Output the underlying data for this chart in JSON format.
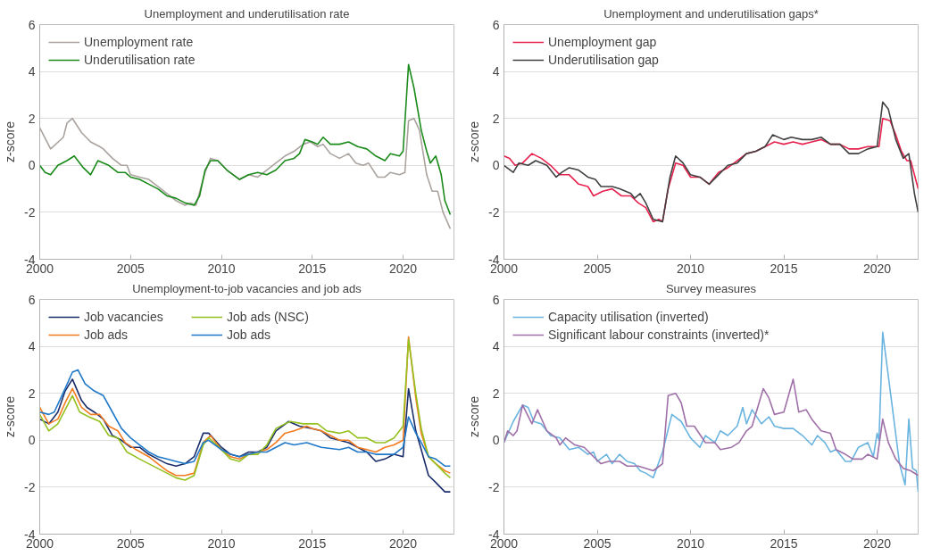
{
  "chart_data": [
    {
      "type": "line",
      "title": "Unemployment and underutilisation rate",
      "ylabel": "z-score",
      "xlim": [
        2000,
        2022.8
      ],
      "xticks": [
        2000,
        2005,
        2010,
        2015,
        2020
      ],
      "ylim": [
        -4,
        6
      ],
      "yticks": [
        -4,
        -2,
        0,
        2,
        4,
        6
      ],
      "grid": "y",
      "legend": "top left",
      "series": [
        {
          "name": "Unemployment rate",
          "color": "#aaa39f",
          "x": [
            2000,
            2000.6,
            2001.3,
            2001.5,
            2001.8,
            2002.3,
            2002.8,
            2003.3,
            2003.5,
            2004,
            2004.5,
            2004.8,
            2005,
            2005.5,
            2006,
            2006.5,
            2007,
            2007.5,
            2008,
            2008.3,
            2008.6,
            2009.1,
            2009.4,
            2009.8,
            2010.3,
            2011,
            2011.5,
            2012,
            2012.5,
            2013,
            2013.5,
            2014,
            2014.5,
            2014.9,
            2015.3,
            2015.6,
            2016,
            2016.5,
            2017,
            2017.4,
            2017.8,
            2018.1,
            2018.6,
            2019,
            2019.3,
            2019.8,
            2020.1,
            2020.3,
            2020.6,
            2020.9,
            2021.3,
            2021.6,
            2021.9,
            2022.2,
            2022.6
          ],
          "values": [
            1.6,
            0.7,
            1.2,
            1.8,
            2.0,
            1.4,
            1.0,
            0.8,
            0.7,
            0.3,
            0.0,
            0.0,
            -0.4,
            -0.5,
            -0.6,
            -0.9,
            -1.2,
            -1.5,
            -1.7,
            -1.6,
            -1.7,
            -0.3,
            0.3,
            0.2,
            -0.2,
            -0.6,
            -0.4,
            -0.5,
            -0.2,
            0.1,
            0.4,
            0.6,
            0.9,
            1.0,
            0.8,
            0.9,
            0.5,
            0.3,
            0.5,
            0.1,
            0.0,
            0.1,
            -0.5,
            -0.5,
            -0.3,
            -0.4,
            -0.3,
            1.9,
            2.0,
            1.5,
            -0.4,
            -1.1,
            -1.1,
            -2.0,
            -2.7
          ]
        },
        {
          "name": "Underutilisation rate",
          "color": "#1a8a1a",
          "x": [
            2000,
            2000.3,
            2000.6,
            2001,
            2001.5,
            2001.9,
            2002.4,
            2002.8,
            2003.2,
            2003.8,
            2004.3,
            2004.7,
            2005,
            2005.5,
            2006,
            2006.5,
            2007,
            2007.5,
            2008,
            2008.5,
            2008.8,
            2009.1,
            2009.4,
            2009.8,
            2010.3,
            2011,
            2011.5,
            2012,
            2012.5,
            2013,
            2013.5,
            2014,
            2014.3,
            2014.6,
            2015,
            2015.3,
            2015.6,
            2016,
            2016.5,
            2017,
            2017.5,
            2018,
            2018.5,
            2019,
            2019.3,
            2019.8,
            2020,
            2020.3,
            2020.6,
            2021,
            2021.3,
            2021.5,
            2021.8,
            2022.1,
            2022.3,
            2022.6
          ],
          "values": [
            0,
            -0.3,
            -0.4,
            0,
            0.2,
            0.4,
            -0.1,
            -0.4,
            0.2,
            0,
            -0.3,
            -0.3,
            -0.5,
            -0.6,
            -0.8,
            -1.0,
            -1.3,
            -1.4,
            -1.6,
            -1.7,
            -1.3,
            -0.2,
            0.2,
            0.2,
            -0.2,
            -0.6,
            -0.4,
            -0.3,
            -0.4,
            -0.2,
            0.2,
            0.3,
            0.5,
            1.1,
            1.0,
            0.9,
            1.2,
            0.9,
            0.9,
            1.0,
            0.8,
            0.7,
            0.4,
            0.2,
            0.5,
            0.4,
            0.6,
            4.3,
            3.3,
            1.5,
            0.6,
            0.1,
            0.4,
            -0.4,
            -1.5,
            -2.1
          ]
        }
      ]
    },
    {
      "type": "line",
      "title": "Unemployment and underutilisation gaps*",
      "ylabel": "z-score",
      "xlim": [
        2000,
        2022.2
      ],
      "xticks": [
        2000,
        2005,
        2010,
        2015,
        2020
      ],
      "ylim": [
        -4,
        6
      ],
      "yticks": [
        -4,
        -2,
        0,
        2,
        4,
        6
      ],
      "grid": "y",
      "legend": "top left",
      "series": [
        {
          "name": "Unemployment gap",
          "color": "#e8224e",
          "x": [
            2000,
            2000.3,
            2000.6,
            2001,
            2001.5,
            2002,
            2002.5,
            2003,
            2003.5,
            2004,
            2004.5,
            2004.8,
            2005.3,
            2005.8,
            2006.3,
            2006.8,
            2007.2,
            2007.6,
            2008,
            2008.3,
            2008.5,
            2008.8,
            2009.2,
            2009.6,
            2010,
            2010.5,
            2011,
            2011.5,
            2012,
            2012.5,
            2013,
            2013.5,
            2014,
            2014.5,
            2015,
            2015.5,
            2016,
            2016.5,
            2017,
            2017.5,
            2018,
            2018.5,
            2019,
            2019.5,
            2019.8,
            2020.1,
            2020.3,
            2020.7,
            2021,
            2021.3,
            2021.6,
            2021.8,
            2022.2
          ],
          "values": [
            0.4,
            0.3,
            0,
            0.1,
            0.5,
            0.3,
            0,
            -0.4,
            -0.4,
            -0.8,
            -0.9,
            -1.3,
            -1.1,
            -1.0,
            -1.3,
            -1.3,
            -1.6,
            -1.8,
            -2.4,
            -2.3,
            -2.4,
            -1.0,
            0.1,
            0.0,
            -0.5,
            -0.5,
            -0.8,
            -0.3,
            -0.1,
            0.2,
            0.5,
            0.6,
            0.8,
            1.0,
            0.9,
            1.0,
            0.9,
            1.0,
            1.1,
            0.9,
            0.9,
            0.7,
            0.7,
            0.8,
            0.8,
            0.8,
            2.0,
            1.9,
            1.3,
            0.6,
            0.2,
            0.2,
            -1.0
          ]
        },
        {
          "name": "Underutilisation gap",
          "color": "#404040",
          "x": [
            2000,
            2000.5,
            2000.8,
            2001.3,
            2001.7,
            2002.3,
            2002.8,
            2003.1,
            2003.5,
            2004,
            2004.5,
            2004.9,
            2005.2,
            2005.8,
            2006.2,
            2006.8,
            2007,
            2007.3,
            2007.6,
            2008,
            2008.5,
            2008.9,
            2009.2,
            2009.6,
            2010,
            2010.5,
            2011,
            2011.5,
            2012,
            2012.5,
            2013,
            2013.5,
            2014,
            2014.4,
            2015,
            2015.4,
            2016,
            2016.5,
            2017,
            2017.5,
            2018,
            2018.5,
            2019,
            2019.5,
            2020,
            2020.3,
            2020.6,
            2021,
            2021.4,
            2021.7,
            2022,
            2022.2
          ],
          "values": [
            0,
            -0.3,
            0.1,
            0.0,
            0.2,
            0,
            -0.5,
            -0.3,
            -0.1,
            -0.2,
            -0.5,
            -0.6,
            -0.9,
            -0.9,
            -1.0,
            -1.2,
            -1.4,
            -1.2,
            -1.6,
            -2.3,
            -2.4,
            -0.5,
            0.4,
            0.1,
            -0.4,
            -0.5,
            -0.8,
            -0.4,
            0.0,
            0.1,
            0.5,
            0.6,
            0.8,
            1.3,
            1.1,
            1.2,
            1.1,
            1.1,
            1.2,
            0.9,
            0.9,
            0.5,
            0.5,
            0.7,
            0.8,
            2.7,
            2.4,
            1.1,
            0.3,
            0.5,
            -1.2,
            -2.0
          ]
        }
      ]
    },
    {
      "type": "line",
      "title": "Unemployment-to-job vacancies and job ads",
      "ylabel": "z-score",
      "xlim": [
        2000,
        2022.8
      ],
      "xticks": [
        2000,
        2005,
        2010,
        2015,
        2020
      ],
      "ylim": [
        -4,
        6
      ],
      "yticks": [
        -4,
        -2,
        0,
        2,
        4,
        6
      ],
      "grid": "y",
      "legend": "top left",
      "series": [
        {
          "name": "Job vacancies",
          "color": "#1a2d6b",
          "x": [
            2000,
            2000.5,
            2001,
            2001.4,
            2001.8,
            2002.3,
            2002.6,
            2003,
            2003.5,
            2004,
            2004.5,
            2005,
            2005.5,
            2006,
            2006.5,
            2007,
            2007.5,
            2008,
            2008.5,
            2009,
            2009.3,
            2010,
            2010.5,
            2011,
            2011.5,
            2012,
            2012.5,
            2013,
            2013.7,
            2014.3,
            2015,
            2015.5,
            2016,
            2016.5,
            2017,
            2017.5,
            2018,
            2018.5,
            2019,
            2019.5,
            2020,
            2020.3,
            2020.7,
            2021,
            2021.4,
            2021.8,
            2022.3,
            2022.6
          ],
          "values": [
            0.9,
            0.7,
            1.2,
            2.1,
            2.6,
            1.7,
            1.4,
            1.2,
            0.9,
            0.2,
            0,
            -0.3,
            -0.3,
            -0.6,
            -0.8,
            -1.0,
            -1.1,
            -1.0,
            -0.7,
            0.3,
            0.3,
            -0.3,
            -0.6,
            -0.7,
            -0.5,
            -0.5,
            -0.3,
            0.4,
            0.8,
            0.6,
            0.5,
            0.4,
            0.1,
            0,
            -0.1,
            -0.3,
            -0.5,
            -0.9,
            -0.8,
            -0.6,
            -0.7,
            2.2,
            0.4,
            -0.4,
            -1.5,
            -1.8,
            -2.2,
            -2.2
          ]
        },
        {
          "name": "Job ads",
          "color": "#f47c20",
          "x": [
            2000,
            2000.5,
            2001,
            2001.4,
            2001.8,
            2002.3,
            2002.8,
            2003.3,
            2003.8,
            2004.3,
            2004.7,
            2005.3,
            2006,
            2006.5,
            2007,
            2007.5,
            2008,
            2008.5,
            2009,
            2009.4,
            2010,
            2010.5,
            2011,
            2011.5,
            2012,
            2012.5,
            2013,
            2013.5,
            2014,
            2014.7,
            2015,
            2015.5,
            2016,
            2016.5,
            2017,
            2017.5,
            2018,
            2018.5,
            2019,
            2019.5,
            2020,
            2020.3,
            2020.7,
            2021,
            2021.4,
            2021.8,
            2022.3,
            2022.6
          ],
          "values": [
            1.4,
            0.7,
            0.9,
            1.6,
            2.2,
            1.4,
            1.1,
            1.1,
            0.6,
            0.4,
            -0.1,
            -0.4,
            -0.7,
            -1.0,
            -1.3,
            -1.5,
            -1.5,
            -1.4,
            -0.1,
            0.2,
            -0.4,
            -0.7,
            -0.8,
            -0.6,
            -0.5,
            -0.4,
            -0.1,
            0.3,
            0.4,
            0.6,
            0.5,
            0.4,
            0.2,
            0.0,
            0.0,
            -0.3,
            -0.4,
            -0.5,
            -0.3,
            -0.2,
            0.0,
            4.4,
            1.8,
            0.3,
            -0.7,
            -1.0,
            -1.3,
            -1.4
          ]
        },
        {
          "name": "Job ads (NSC)",
          "color": "#95c11f",
          "x": [
            2000,
            2000.5,
            2001,
            2001.4,
            2001.8,
            2002.2,
            2002.7,
            2003.3,
            2003.8,
            2004.3,
            2004.8,
            2005.5,
            2006,
            2006.5,
            2007,
            2007.5,
            2008,
            2008.5,
            2009,
            2009.3,
            2010,
            2010.5,
            2011,
            2011.5,
            2012,
            2012.5,
            2013,
            2013.5,
            2013.8,
            2014.5,
            2015.3,
            2015.8,
            2016.5,
            2017,
            2017.5,
            2018,
            2018.5,
            2019,
            2019.5,
            2020,
            2020.3,
            2020.7,
            2021,
            2021.4,
            2021.8,
            2022.3,
            2022.6
          ],
          "values": [
            1.1,
            0.4,
            0.7,
            1.3,
            1.9,
            1.2,
            1.0,
            0.8,
            0.2,
            0.1,
            -0.5,
            -0.8,
            -1.0,
            -1.2,
            -1.4,
            -1.6,
            -1.7,
            -1.5,
            -0.2,
            0.1,
            -0.4,
            -0.8,
            -0.9,
            -0.6,
            -0.6,
            -0.2,
            0.5,
            0.7,
            0.8,
            0.7,
            0.7,
            0.4,
            0.3,
            0.4,
            0.1,
            0.1,
            -0.1,
            -0.1,
            0.1,
            0.6,
            4.3,
            2.0,
            0.5,
            -0.7,
            -1.0,
            -1.4,
            -1.6
          ]
        },
        {
          "name": "Job ads",
          "color": "#1f78c8",
          "x": [
            2000,
            2000.5,
            2000.8,
            2001.4,
            2001.8,
            2002.1,
            2002.5,
            2003,
            2003.5,
            2004,
            2004.5,
            2005,
            2005.5,
            2006,
            2006.5,
            2007,
            2007.5,
            2008,
            2008.5,
            2009,
            2009.3,
            2010,
            2010.5,
            2011,
            2011.5,
            2012,
            2012.5,
            2013,
            2013.5,
            2014,
            2014.7,
            2015.5,
            2016.5,
            2017,
            2017.5,
            2018,
            2018.5,
            2019,
            2019.5,
            2020,
            2020.3,
            2020.7,
            2021,
            2021.4,
            2021.8,
            2022.3,
            2022.6
          ],
          "values": [
            1.2,
            1.1,
            1.2,
            2.2,
            2.9,
            3.0,
            2.4,
            2.1,
            1.9,
            1.2,
            0.5,
            0.1,
            -0.2,
            -0.5,
            -0.7,
            -0.8,
            -0.9,
            -1.0,
            -0.9,
            -0.1,
            0.0,
            -0.4,
            -0.6,
            -0.7,
            -0.6,
            -0.5,
            -0.5,
            -0.3,
            -0.1,
            -0.2,
            -0.1,
            -0.3,
            -0.4,
            -0.3,
            -0.5,
            -0.5,
            -0.6,
            -0.6,
            -0.6,
            -0.3,
            1.0,
            0.3,
            -0.1,
            -0.7,
            -0.8,
            -1.1,
            -1.1
          ]
        }
      ]
    },
    {
      "type": "line",
      "title": "Survey measures",
      "ylabel": "z-score",
      "xlim": [
        2000,
        2022.2
      ],
      "xticks": [
        2000,
        2005,
        2010,
        2015,
        2020
      ],
      "ylim": [
        -4,
        6
      ],
      "yticks": [
        -4,
        -2,
        0,
        2,
        4,
        6
      ],
      "grid": "y",
      "legend": "top left",
      "series": [
        {
          "name": "Capacity utilisation (inverted)",
          "color": "#6ab4e0",
          "x": [
            2000,
            2000.5,
            2001,
            2001.3,
            2001.6,
            2002,
            2002.5,
            2003,
            2003.5,
            2004,
            2004.5,
            2004.8,
            2005,
            2005.5,
            2005.8,
            2006.2,
            2006.6,
            2007,
            2007.3,
            2007.6,
            2008,
            2008.5,
            2009,
            2009.5,
            2010,
            2010.5,
            2010.8,
            2011.3,
            2011.6,
            2012,
            2012.5,
            2012.8,
            2013,
            2013.3,
            2013.8,
            2014.2,
            2014.5,
            2015,
            2015.5,
            2016,
            2016.5,
            2016.8,
            2017.2,
            2017.5,
            2017.8,
            2018.3,
            2018.6,
            2019,
            2019.5,
            2019.8,
            2020,
            2020.1,
            2020.3,
            2020.8,
            2021.2,
            2021.5,
            2021.7,
            2021.9,
            2022.1,
            2022.2
          ],
          "values": [
            -0.1,
            0.8,
            1.5,
            1.4,
            0.8,
            0.7,
            0.2,
            0.1,
            -0.4,
            -0.3,
            -0.6,
            -0.5,
            -0.9,
            -0.6,
            -1.0,
            -0.6,
            -0.9,
            -1.0,
            -1.3,
            -1.4,
            -1.6,
            -0.5,
            1.1,
            0.8,
            0.1,
            -0.3,
            0.2,
            -0.1,
            0.4,
            0.2,
            0.6,
            1.4,
            0.7,
            1.3,
            0.7,
            1.0,
            0.6,
            0.5,
            0.5,
            0.2,
            -0.2,
            0.2,
            -0.1,
            -0.5,
            -0.4,
            -0.9,
            -0.9,
            -0.3,
            -0.1,
            -0.7,
            0.3,
            0.0,
            4.6,
            1.5,
            -1.0,
            -1.9,
            0.9,
            -1.2,
            -1.3,
            -2.2
          ]
        },
        {
          "name": "Significant labour constraints (inverted)*",
          "color": "#a070a8",
          "x": [
            2000,
            2000.2,
            2000.5,
            2000.7,
            2001,
            2001.5,
            2001.8,
            2002.3,
            2002.8,
            2003,
            2003.3,
            2003.8,
            2004.3,
            2004.8,
            2005.2,
            2005.6,
            2006.2,
            2006.6,
            2007.2,
            2007.6,
            2008,
            2008.5,
            2008.8,
            2009.2,
            2009.5,
            2009.8,
            2010.2,
            2010.8,
            2011.3,
            2011.6,
            2012.2,
            2012.6,
            2013,
            2013.3,
            2013.6,
            2013.9,
            2014.2,
            2014.5,
            2015,
            2015.5,
            2015.8,
            2016.2,
            2016.5,
            2017,
            2017.5,
            2017.8,
            2018.3,
            2018.7,
            2019.2,
            2019.5,
            2020,
            2020.3,
            2020.6,
            2021,
            2021.4,
            2021.8,
            2022.2
          ],
          "values": [
            -0.1,
            0.4,
            0.2,
            0.4,
            1.5,
            0.7,
            1.3,
            0.4,
            0.1,
            -0.2,
            0.1,
            -0.2,
            -0.3,
            -0.7,
            -1.0,
            -0.9,
            -0.9,
            -1.1,
            -1.1,
            -1.2,
            -1.3,
            -1.0,
            1.9,
            2.0,
            1.6,
            0.6,
            0.6,
            -0.1,
            -0.1,
            -0.4,
            -0.3,
            -0.1,
            0.4,
            0.6,
            1.4,
            2.2,
            1.8,
            1.1,
            1.2,
            2.6,
            1.2,
            1.3,
            0.9,
            0.4,
            0.3,
            -0.4,
            -0.6,
            -0.8,
            -0.8,
            -0.6,
            -0.8,
            0.9,
            -0.1,
            -0.8,
            -1.2,
            -1.3,
            -1.5
          ]
        }
      ]
    }
  ]
}
